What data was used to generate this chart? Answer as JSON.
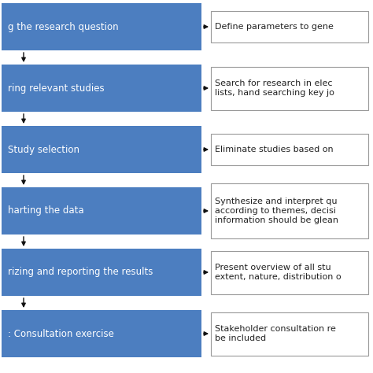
{
  "stages": [
    "g the research question",
    "ring relevant studies",
    "Study selection",
    "harting the data",
    "rizing and reporting the results",
    ": Consultation exercise"
  ],
  "descriptions": [
    "Define parameters to gene",
    "Search for research in elec\nlists, hand searching key jo",
    "Eliminate studies based on",
    "Synthesize and interpret qu\naccording to themes, decisi\ninformation should be glean",
    "Present overview of all stu\nextent, nature, distribution o",
    "Stakeholder consultation re\nbe included"
  ],
  "box_color": "#4C7EC0",
  "text_color_white": "#FFFFFF",
  "text_color_dark": "#222222",
  "desc_box_color": "#FFFFFF",
  "desc_box_edge": "#999999",
  "background_color": "#FFFFFF",
  "arrow_color": "#111111",
  "fontsize_stage": 8.5,
  "fontsize_desc": 8.0
}
